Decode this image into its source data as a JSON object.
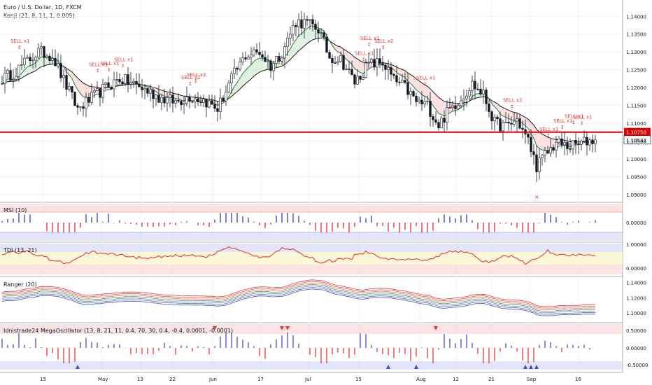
{
  "header": {
    "title": "Euro / U.S. Dollar, 1D, FXCM",
    "indicator": "Kenji (21, 8, 11, 1, 0.005)"
  },
  "price_axis": {
    "ticks": [
      "1.14000",
      "1.13500",
      "1.13000",
      "1.12500",
      "1.12000",
      "1.11500",
      "1.11000",
      "1.10500",
      "1.10000",
      "1.09500",
      "1.09000"
    ],
    "hline_label": "1.10750",
    "last_label": "1.10532"
  },
  "x_axis": {
    "ticks": [
      {
        "label": "15",
        "x": 62
      },
      {
        "label": "May",
        "x": 145
      },
      {
        "label": "13",
        "x": 201
      },
      {
        "label": "22",
        "x": 247
      },
      {
        "label": "Jun",
        "x": 304
      },
      {
        "label": "17",
        "x": 373
      },
      {
        "label": "Jul",
        "x": 441
      },
      {
        "label": "15",
        "x": 513
      },
      {
        "label": "Aug",
        "x": 600
      },
      {
        "label": "12",
        "x": 652
      },
      {
        "label": "21",
        "x": 703
      },
      {
        "label": "Sep",
        "x": 758
      },
      {
        "label": "16",
        "x": 827
      }
    ]
  },
  "panels": {
    "msi": {
      "title": "MSI (10)",
      "ticks": [
        "0.00000"
      ]
    },
    "tdi": {
      "title": "TDI (13, 21)",
      "ticks": [
        "1.00000",
        "0.00000"
      ]
    },
    "ranger": {
      "title": "Ranger (20)",
      "ticks": [
        "1.14000",
        "1.12000",
        "1.10000"
      ]
    },
    "mega": {
      "title": "Idnistrade24 MegaOscillator (13, 8, 21, 11, 0.4, 70, 30, 0.4, -0.4, 0.0001, -0.0001)",
      "ticks": [
        "0.50000",
        "0.00000",
        "-0.50000"
      ]
    }
  },
  "sell_signals": [
    "SELL x1",
    "SELL x1",
    "SELL x1",
    "SELL x1",
    "SELL x2",
    "SELL x2",
    "SELL x1",
    "SELL x1",
    "SELL x2",
    "SELL x1",
    "SELL x2",
    "SELL x1",
    "SELL x1",
    "SELL x1",
    "SELL x1"
  ],
  "chart_data": {
    "type": "candlestick",
    "symbol": "EURUSD",
    "hline": 1.1075,
    "last": 1.10532,
    "ylim": [
      1.088,
      1.143
    ],
    "sell_at": [
      [
        6,
        "SELL x1"
      ],
      [
        34,
        "SELL x1"
      ],
      [
        38,
        "SELL x1"
      ],
      [
        43,
        "SELL x1"
      ],
      [
        67,
        "SELL x2"
      ],
      [
        69,
        "SELL x2"
      ],
      [
        129,
        "SELL x1"
      ],
      [
        131,
        "SELL x1"
      ],
      [
        136,
        "SELL x2"
      ],
      [
        151,
        "SELL x1"
      ],
      [
        182,
        "SELL x2"
      ],
      [
        195,
        "SELL x1"
      ],
      [
        200,
        "SELL x1"
      ],
      [
        204,
        "SELL x1"
      ],
      [
        207,
        "SELL x1"
      ]
    ],
    "anchors": [
      [
        0,
        1.1225
      ],
      [
        4,
        1.124
      ],
      [
        9,
        1.1275
      ],
      [
        13,
        1.13
      ],
      [
        18,
        1.129
      ],
      [
        22,
        1.122
      ],
      [
        27,
        1.114
      ],
      [
        32,
        1.117
      ],
      [
        37,
        1.12
      ],
      [
        42,
        1.1225
      ],
      [
        47,
        1.121
      ],
      [
        52,
        1.119
      ],
      [
        57,
        1.117
      ],
      [
        62,
        1.116
      ],
      [
        67,
        1.1175
      ],
      [
        72,
        1.1165
      ],
      [
        77,
        1.114
      ],
      [
        82,
        1.1225
      ],
      [
        87,
        1.129
      ],
      [
        92,
        1.13
      ],
      [
        96,
        1.126
      ],
      [
        100,
        1.13
      ],
      [
        105,
        1.1385
      ],
      [
        109,
        1.138
      ],
      [
        113,
        1.1365
      ],
      [
        117,
        1.1285
      ],
      [
        121,
        1.128
      ],
      [
        126,
        1.1215
      ],
      [
        131,
        1.1265
      ],
      [
        136,
        1.127
      ],
      [
        140,
        1.122
      ],
      [
        144,
        1.12
      ],
      [
        148,
        1.116
      ],
      [
        152,
        1.115
      ],
      [
        156,
        1.1095
      ],
      [
        160,
        1.114
      ],
      [
        164,
        1.117
      ],
      [
        168,
        1.121
      ],
      [
        172,
        1.118
      ],
      [
        176,
        1.11
      ],
      [
        180,
        1.109
      ],
      [
        184,
        1.111
      ],
      [
        188,
        1.105
      ],
      [
        191,
        1.098
      ],
      [
        194,
        1.101
      ],
      [
        198,
        1.1045
      ],
      [
        202,
        1.1035
      ],
      [
        206,
        1.104
      ],
      [
        209,
        1.105
      ],
      [
        212,
        1.1053
      ]
    ]
  }
}
